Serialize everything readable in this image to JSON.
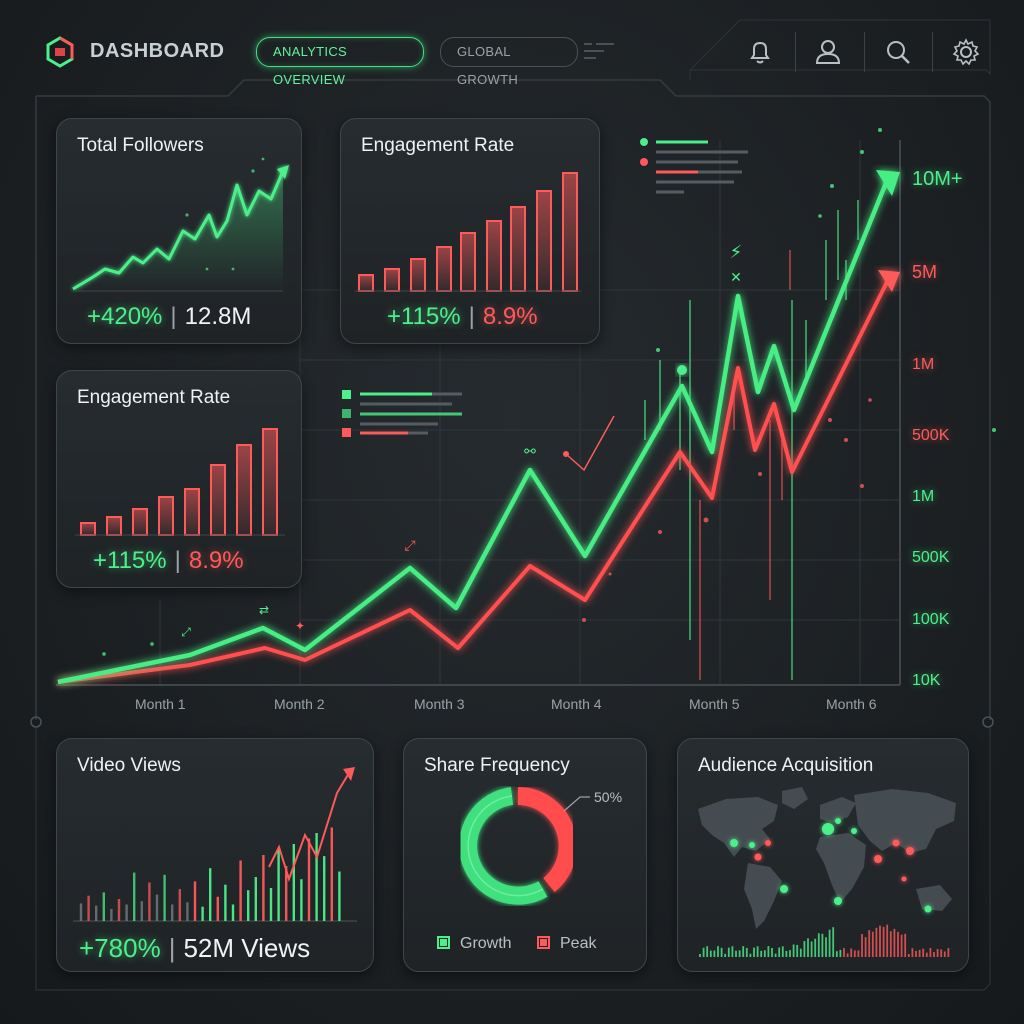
{
  "header": {
    "brand": "DASHBOARD",
    "tabs": [
      {
        "label": "ANALYTICS OVERVIEW",
        "active": true
      },
      {
        "label": "GLOBAL GROWTH",
        "active": false
      }
    ],
    "icons": [
      "bell-icon",
      "user-icon",
      "search-icon",
      "gear-icon"
    ]
  },
  "cards": {
    "followers": {
      "title": "Total Followers",
      "change": "+420%",
      "value": "12.8M"
    },
    "engagement_top": {
      "title": "Engagement Rate",
      "change": "+115%",
      "value": "8.9%"
    },
    "engagement_left": {
      "title": "Engagement Rate",
      "change": "+115%",
      "value": "8.9%"
    },
    "video": {
      "title": "Video Views",
      "change": "+780%",
      "value": "52M Views"
    },
    "share": {
      "title": "Share Frequency",
      "callout": "50%",
      "legend": [
        "Growth",
        "Peak"
      ]
    },
    "audience": {
      "title": "Audience Acquisition"
    }
  },
  "main_chart": {
    "x_labels": [
      "Month 1",
      "Month 2",
      "Month 3",
      "Month 4",
      "Month 5",
      "Month 6"
    ],
    "y_labels_right": [
      {
        "text": "10M+",
        "color": "green"
      },
      {
        "text": "5M",
        "color": "red"
      },
      {
        "text": "1M",
        "color": "red"
      },
      {
        "text": "500K",
        "color": "red"
      },
      {
        "text": "1M",
        "color": "green"
      },
      {
        "text": "500K",
        "color": "green"
      },
      {
        "text": "100K",
        "color": "green"
      },
      {
        "text": "10K",
        "color": "green"
      }
    ]
  },
  "colors": {
    "green": "#4cf08a",
    "red": "#ff5a5a",
    "panel_border": "#3e464b"
  }
}
